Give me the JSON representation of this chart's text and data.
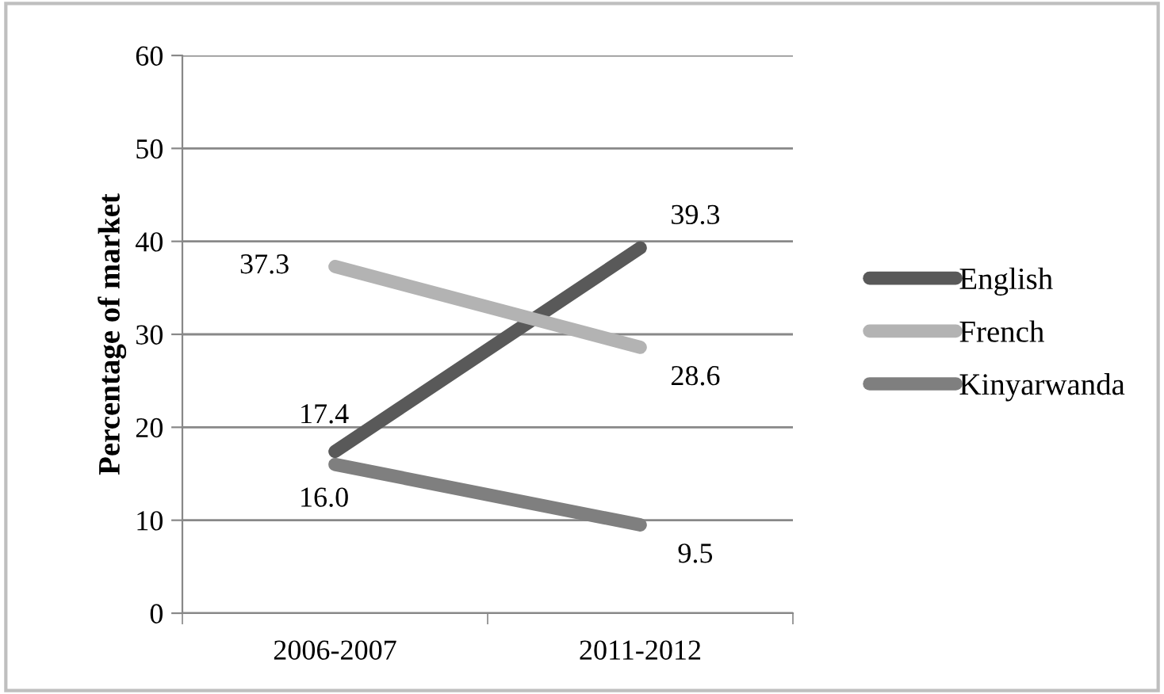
{
  "chart_data": {
    "type": "line",
    "ylabel": "Percentage of market",
    "categories": [
      "2006-2007",
      "2011-2012"
    ],
    "series": [
      {
        "name": "English",
        "color": "#595959",
        "values": [
          17.4,
          39.3
        ],
        "value_labels": [
          "17.4",
          "39.3"
        ]
      },
      {
        "name": "French",
        "color": "#b3b3b3",
        "values": [
          37.3,
          28.6
        ],
        "value_labels": [
          "37.3",
          "28.6"
        ]
      },
      {
        "name": "Kinyarwanda",
        "color": "#7f7f7f",
        "values": [
          16.0,
          9.5
        ],
        "value_labels": [
          "16.0",
          "9.5"
        ]
      }
    ],
    "ylim": [
      0,
      60
    ],
    "yticks": [
      0,
      10,
      20,
      30,
      40,
      50,
      60
    ],
    "grid": "y",
    "legend": "right",
    "marker": "none",
    "line_style": "solid"
  }
}
